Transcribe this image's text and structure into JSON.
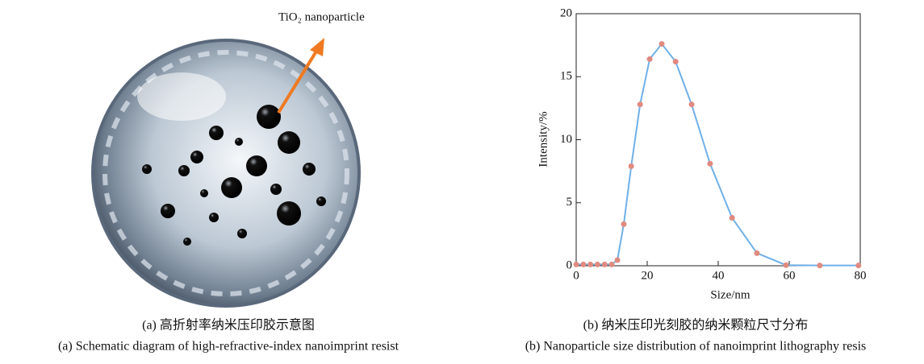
{
  "figure_a": {
    "label": "TiO₂ nanoparticle",
    "caption_cn": "(a) 高折射率纳米压印胶示意图",
    "caption_en": "(a) Schematic diagram of high-refractive-index nanoimprint resist"
  },
  "chart_data": {
    "type": "line",
    "x_label": "Size/nm",
    "y_label": "Intensity/%",
    "caption_cn": "(b) 纳米压印光刻胶的纳米颗粒尺寸分布",
    "caption_en": "(b) Nanoparticle size distribution of nanoimprint lithography resis",
    "x": [
      0,
      2,
      4,
      6,
      8,
      10,
      11.6,
      13.4,
      15.5,
      18,
      20.7,
      24.1,
      28,
      32.5,
      37.7,
      43.9,
      50.9,
      59.1,
      68.6,
      79.5
    ],
    "series": [
      {
        "color": "#6fb0e8",
        "marker_color": "#e08a80",
        "values": [
          0.1,
          0.1,
          0.1,
          0.1,
          0.1,
          0.1,
          0.45,
          3.3,
          7.9,
          12.8,
          16.4,
          17.6,
          16.2,
          12.8,
          8.1,
          3.8,
          1.0,
          0.05,
          0.02,
          0.02
        ]
      }
    ],
    "xlim": [
      0,
      80
    ],
    "ylim": [
      0,
      20
    ],
    "xticks": [
      0,
      20,
      40,
      60,
      80
    ],
    "yticks": [
      0,
      5,
      10,
      15,
      20
    ]
  }
}
